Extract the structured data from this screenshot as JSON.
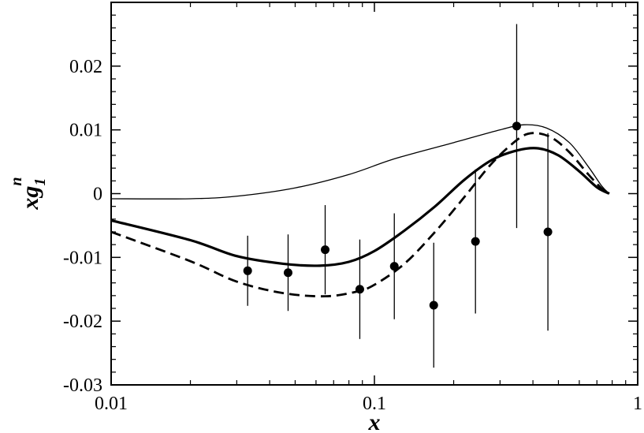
{
  "chart_data": {
    "type": "line",
    "title": "",
    "xlabel": "x",
    "ylabel": {
      "main": "xg",
      "superscript": "n",
      "subscript": "1"
    },
    "x_scale": "log",
    "xlim": [
      0.01,
      1
    ],
    "ylim": [
      -0.03,
      0.03
    ],
    "x_ticks": [
      {
        "value": 0.01,
        "label": "0.01"
      },
      {
        "value": 0.1,
        "label": "0.1"
      },
      {
        "value": 1,
        "label": "1"
      }
    ],
    "y_ticks": [
      {
        "value": -0.03,
        "label": "-0.03"
      },
      {
        "value": -0.02,
        "label": "-0.02"
      },
      {
        "value": -0.01,
        "label": "-0.01"
      },
      {
        "value": 0,
        "label": "0"
      },
      {
        "value": 0.01,
        "label": "0.01"
      },
      {
        "value": 0.02,
        "label": "0.02"
      }
    ],
    "grid": false,
    "legend": "none",
    "series": [
      {
        "style": "thin-solid",
        "x": [
          0.01,
          0.02,
          0.03,
          0.05,
          0.08,
          0.12,
          0.2,
          0.3,
          0.37,
          0.45,
          0.55,
          0.65,
          0.73,
          0.78
        ],
        "y": [
          -0.0008,
          -0.0008,
          -0.0004,
          0.0009,
          0.003,
          0.0055,
          0.008,
          0.01,
          0.0108,
          0.0103,
          0.008,
          0.0042,
          0.0012,
          0.0
        ]
      },
      {
        "style": "thick-solid",
        "x": [
          0.01,
          0.02,
          0.03,
          0.045,
          0.062,
          0.08,
          0.1,
          0.13,
          0.17,
          0.22,
          0.28,
          0.35,
          0.42,
          0.5,
          0.6,
          0.7,
          0.78
        ],
        "y": [
          -0.0042,
          -0.0073,
          -0.0098,
          -0.011,
          -0.0113,
          -0.0107,
          -0.009,
          -0.0058,
          -0.002,
          0.0022,
          0.0053,
          0.0068,
          0.0071,
          0.006,
          0.0035,
          0.001,
          0.0
        ]
      },
      {
        "style": "thick-dashed",
        "x": [
          0.01,
          0.02,
          0.03,
          0.045,
          0.065,
          0.085,
          0.1,
          0.13,
          0.17,
          0.22,
          0.28,
          0.35,
          0.4,
          0.47,
          0.55,
          0.65,
          0.73,
          0.78
        ],
        "y": [
          -0.006,
          -0.0106,
          -0.0138,
          -0.0156,
          -0.0161,
          -0.0154,
          -0.0143,
          -0.011,
          -0.006,
          -0.0005,
          0.0048,
          0.0085,
          0.0095,
          0.0088,
          0.0065,
          0.003,
          0.0008,
          0.0
        ]
      }
    ],
    "data_points": [
      {
        "x": 0.033,
        "y": -0.0121,
        "err": 0.0055
      },
      {
        "x": 0.047,
        "y": -0.0124,
        "err": 0.006
      },
      {
        "x": 0.065,
        "y": -0.0088,
        "err": 0.007
      },
      {
        "x": 0.088,
        "y": -0.015,
        "err": 0.0078
      },
      {
        "x": 0.119,
        "y": -0.0114,
        "err": 0.0083
      },
      {
        "x": 0.168,
        "y": -0.0175,
        "err": 0.0098
      },
      {
        "x": 0.242,
        "y": -0.0075,
        "err": 0.0113
      },
      {
        "x": 0.347,
        "y": 0.0106,
        "err": 0.016
      },
      {
        "x": 0.456,
        "y": -0.006,
        "err": 0.0155
      }
    ]
  }
}
